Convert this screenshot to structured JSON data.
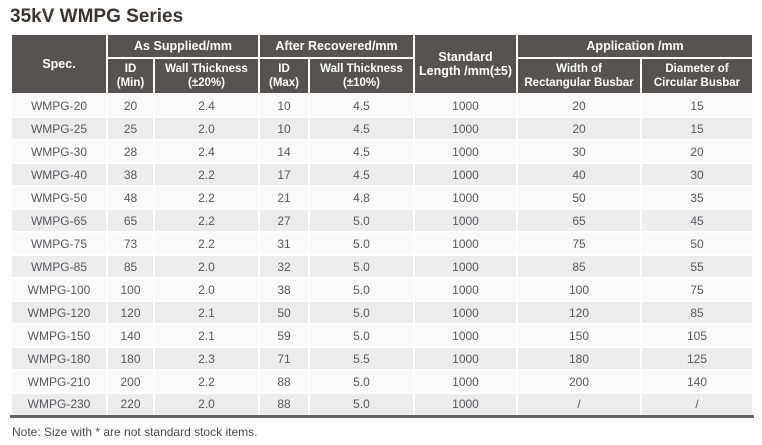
{
  "title": "35kV WMPG Series",
  "note": "Note: Size with * are not standard stock items.",
  "colors": {
    "header_bg": "#585353",
    "row_base": "#fafafa",
    "row_alt": "#ececec",
    "bottom_rule": "#666463",
    "title_text": "#3b3530"
  },
  "table": {
    "headers": {
      "spec": "Spec.",
      "as_supplied_group": "As Supplied/mm",
      "after_recovered_group": "After Recovered/mm",
      "standard_length": [
        "Standard",
        "Length /mm(±5)"
      ],
      "application_group": "Application /mm",
      "id_min": [
        "ID",
        "(Min)"
      ],
      "wall_thickness_20": [
        "Wall Thickness",
        "(±20%)"
      ],
      "id_max": [
        "ID",
        "(Max)"
      ],
      "wall_thickness_10": [
        "Wall Thickness",
        "(±10%)"
      ],
      "width_rect_busbar": [
        "Width of",
        "Rectangular Busbar"
      ],
      "dia_circ_busbar": [
        "Diameter of",
        "Circular Busbar"
      ]
    },
    "column_keys": [
      "spec",
      "id_min",
      "wall_thickness_20",
      "id_max",
      "wall_thickness_10",
      "standard_length",
      "width_rect_busbar",
      "dia_circ_busbar"
    ],
    "rows": [
      [
        "WMPG-20",
        "20",
        "2.4",
        "10",
        "4.5",
        "1000",
        "20",
        "15"
      ],
      [
        "WMPG-25",
        "25",
        "2.0",
        "10",
        "4.5",
        "1000",
        "20",
        "15"
      ],
      [
        "WMPG-30",
        "28",
        "2.4",
        "14",
        "4.5",
        "1000",
        "30",
        "20"
      ],
      [
        "WMPG-40",
        "38",
        "2.2",
        "17",
        "4.5",
        "1000",
        "40",
        "30"
      ],
      [
        "WMPG-50",
        "48",
        "2.2",
        "21",
        "4.8",
        "1000",
        "50",
        "35"
      ],
      [
        "WMPG-65",
        "65",
        "2.2",
        "27",
        "5.0",
        "1000",
        "65",
        "45"
      ],
      [
        "WMPG-75",
        "73",
        "2.2",
        "31",
        "5.0",
        "1000",
        "75",
        "50"
      ],
      [
        "WMPG-85",
        "85",
        "2.0",
        "32",
        "5.0",
        "1000",
        "85",
        "55"
      ],
      [
        "WMPG-100",
        "100",
        "2.0",
        "38",
        "5.0",
        "1000",
        "100",
        "75"
      ],
      [
        "WMPG-120",
        "120",
        "2.1",
        "50",
        "5.0",
        "1000",
        "120",
        "85"
      ],
      [
        "WMPG-150",
        "140",
        "2.1",
        "59",
        "5.0",
        "1000",
        "150",
        "105"
      ],
      [
        "WMPG-180",
        "180",
        "2.3",
        "71",
        "5.5",
        "1000",
        "180",
        "125"
      ],
      [
        "WMPG-210",
        "200",
        "2.2",
        "88",
        "5.0",
        "1000",
        "200",
        "140"
      ],
      [
        "WMPG-230",
        "220",
        "2.0",
        "88",
        "5.0",
        "1000",
        "/",
        "/"
      ]
    ]
  }
}
